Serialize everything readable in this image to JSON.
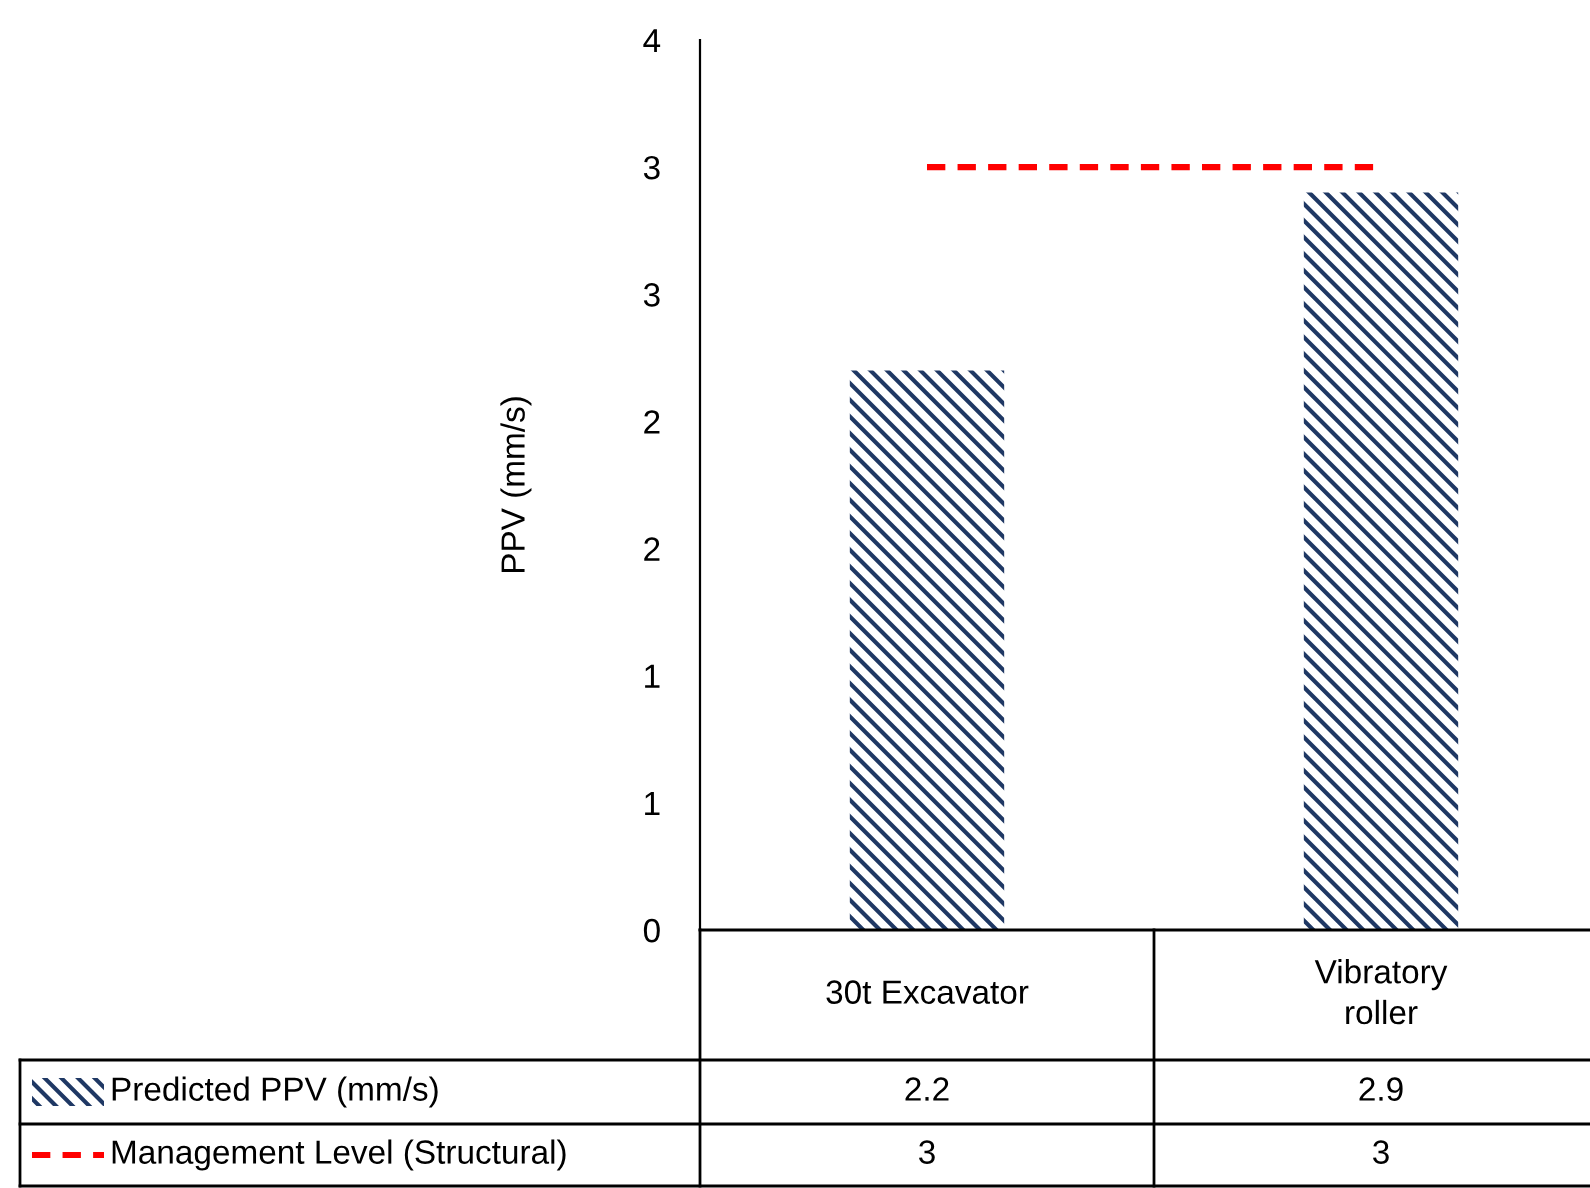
{
  "chart_data": {
    "type": "bar",
    "ylabel": "PPV (mm/s)",
    "categories": [
      "30t Excavator",
      "Vibratory roller"
    ],
    "series": [
      {
        "name": "Predicted PPV (mm/s)",
        "color": "#1f3864",
        "values": [
          2.2,
          2.9
        ]
      },
      {
        "name": "Management Level (Structural)",
        "type": "line",
        "color": "#ff0000",
        "line_style": "dashed",
        "marker": "none",
        "values": [
          3,
          3
        ]
      }
    ],
    "ylim": [
      0,
      3.5
    ],
    "yticks": [
      0,
      {
        "value": 0.5,
        "label": "1"
      },
      1,
      {
        "value": 1.5,
        "label": "2"
      },
      2,
      {
        "value": 2.5,
        "label": "3"
      },
      3,
      {
        "value": 3.5,
        "label": "4"
      }
    ],
    "grid": false,
    "legend": "bottom",
    "data_labels": true
  }
}
